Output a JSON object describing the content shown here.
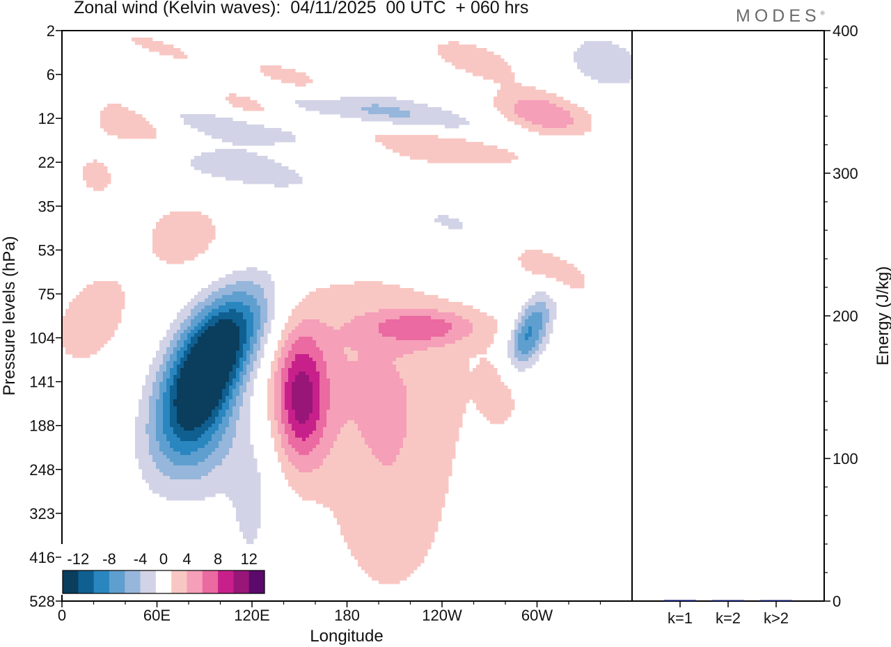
{
  "title": "Zonal wind (Kelvin waves):  04/11/2025  00 UTC  + 060 hrs",
  "logo": "MODES",
  "logo_mark": "®",
  "chart_data": [
    {
      "type": "heatmap",
      "title": "Zonal wind (Kelvin waves):  04/11/2025  00 UTC  + 060 hrs",
      "xlabel": "Longitude",
      "ylabel": "Pressure levels (hPa)",
      "x_tick_labels": [
        "0",
        "60E",
        "120E",
        "180",
        "120W",
        "60W"
      ],
      "y_tick_labels": [
        "2",
        "6",
        "12",
        "22",
        "35",
        "53",
        "75",
        "104",
        "141",
        "188",
        "248",
        "323",
        "416",
        "528"
      ],
      "colorbar": {
        "labels": [
          "-12",
          "-8",
          "-4",
          "0",
          "4",
          "8",
          "12"
        ],
        "levels": [
          -14,
          -12,
          -10,
          -8,
          -6,
          -4,
          -2,
          2,
          4,
          6,
          8,
          10,
          12,
          14
        ],
        "colors": [
          "#0b3d5c",
          "#0f5f91",
          "#2a86bf",
          "#5f9fcf",
          "#97b6db",
          "#d2d3e6",
          "#ffffff",
          "#f9c7c3",
          "#f59fb8",
          "#ea6aa1",
          "#c8208b",
          "#991679",
          "#5b0a6b"
        ]
      },
      "features": [
        {
          "sign": "negative",
          "peak": -16,
          "lon": 85,
          "level": 141,
          "description": "strong easterly anomaly"
        },
        {
          "sign": "positive",
          "peak": 9,
          "lon": 150,
          "level": 141,
          "description": "westerly anomaly"
        },
        {
          "sign": "negative",
          "peak": -8,
          "lon": 195,
          "level": 12,
          "description": "upper easterly band"
        },
        {
          "sign": "positive",
          "peak": 7,
          "lon": 300,
          "level": 12,
          "description": "upper westerly band"
        },
        {
          "sign": "negative",
          "peak": -8,
          "lon": 300,
          "level": 104,
          "description": "small easterly cell"
        }
      ]
    },
    {
      "type": "bar",
      "categories": [
        "k=1",
        "k=2",
        "k>2"
      ],
      "values": [
        0.8,
        0.5,
        0.4
      ],
      "ylabel": "Energy (J/kg)",
      "ylim": [
        0,
        400
      ],
      "y_tick_labels": [
        "0",
        "100",
        "200",
        "300",
        "400"
      ],
      "bar_color": "#1a237e"
    }
  ]
}
